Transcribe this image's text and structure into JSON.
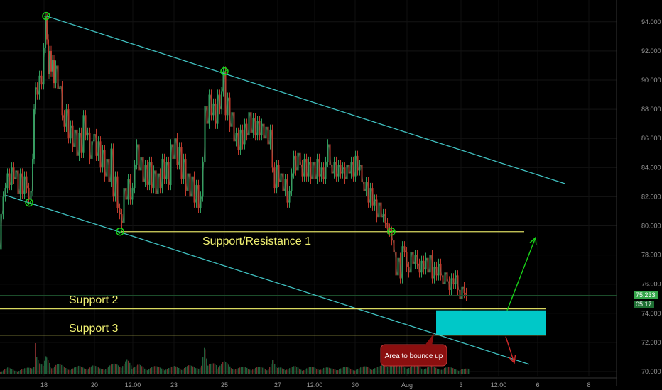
{
  "chart_data": {
    "type": "candlestick",
    "title": "",
    "y_ticks": [
      "94.000",
      "92.000",
      "90.000",
      "88.000",
      "86.000",
      "84.000",
      "82.000",
      "80.000",
      "78.000",
      "76.000",
      "74.000",
      "72.000",
      "70.000"
    ],
    "y_values": [
      94,
      92,
      90,
      88,
      86,
      84,
      82,
      80,
      78,
      76,
      74,
      72,
      70
    ],
    "ylim": [
      69.6,
      95.3
    ],
    "x_ticks": [
      "18",
      "20",
      "12:00",
      "23",
      "25",
      "27",
      "12:00",
      "30",
      "Aug",
      "3",
      "12:00",
      "6",
      "8"
    ],
    "current_price": "75.233",
    "countdown": "05:17",
    "grid": true,
    "price_path": [
      [
        0,
        78.4
      ],
      [
        3,
        80.8
      ],
      [
        6,
        82.0
      ],
      [
        9,
        82.6
      ],
      [
        12,
        83.6
      ],
      [
        15,
        82.8
      ],
      [
        18,
        84.0
      ],
      [
        21,
        83.2
      ],
      [
        24,
        83.8
      ],
      [
        27,
        82.2
      ],
      [
        30,
        83.6
      ],
      [
        33,
        82.2
      ],
      [
        36,
        83.4
      ],
      [
        39,
        82.6
      ],
      [
        42,
        81.8
      ],
      [
        45,
        82.4
      ],
      [
        47,
        84.6
      ],
      [
        49,
        88.0
      ],
      [
        51,
        89.5
      ],
      [
        54,
        89.0
      ],
      [
        57,
        90.3
      ],
      [
        60,
        89.7
      ],
      [
        63,
        92.2
      ],
      [
        65,
        94.3
      ],
      [
        67,
        92.8
      ],
      [
        69,
        90.4
      ],
      [
        71,
        92.0
      ],
      [
        73,
        90.6
      ],
      [
        75,
        91.4
      ],
      [
        77,
        89.8
      ],
      [
        80,
        91.0
      ],
      [
        83,
        89.4
      ],
      [
        86,
        89.6
      ],
      [
        89,
        87.6
      ],
      [
        92,
        86.8
      ],
      [
        95,
        88.0
      ],
      [
        98,
        86.0
      ],
      [
        101,
        86.9
      ],
      [
        104,
        85.4
      ],
      [
        107,
        86.6
      ],
      [
        110,
        84.8
      ],
      [
        113,
        86.4
      ],
      [
        116,
        85.0
      ],
      [
        119,
        87.6
      ],
      [
        122,
        86.2
      ],
      [
        125,
        86.4
      ],
      [
        128,
        84.6
      ],
      [
        131,
        85.8
      ],
      [
        134,
        86.3
      ],
      [
        137,
        84.8
      ],
      [
        140,
        85.8
      ],
      [
        143,
        84.0
      ],
      [
        146,
        85.2
      ],
      [
        149,
        83.4
      ],
      [
        152,
        84.6
      ],
      [
        155,
        83.0
      ],
      [
        158,
        85.3
      ],
      [
        161,
        82.0
      ],
      [
        164,
        83.4
      ],
      [
        167,
        81.2
      ],
      [
        170,
        80.8
      ],
      [
        173,
        80.2
      ],
      [
        176,
        82.6
      ],
      [
        179,
        81.8
      ],
      [
        182,
        83.2
      ],
      [
        185,
        81.8
      ],
      [
        188,
        82.6
      ],
      [
        191,
        84.2
      ],
      [
        194,
        85.6
      ],
      [
        197,
        83.8
      ],
      [
        200,
        84.7
      ],
      [
        203,
        83.0
      ],
      [
        206,
        84.2
      ],
      [
        209,
        82.8
      ],
      [
        212,
        84.4
      ],
      [
        215,
        82.6
      ],
      [
        218,
        83.8
      ],
      [
        221,
        82.2
      ],
      [
        224,
        83.6
      ],
      [
        227,
        82.6
      ],
      [
        230,
        84.6
      ],
      [
        233,
        83.2
      ],
      [
        236,
        84.4
      ],
      [
        239,
        82.8
      ],
      [
        242,
        85.6
      ],
      [
        245,
        84.6
      ],
      [
        248,
        86.0
      ],
      [
        251,
        84.2
      ],
      [
        254,
        85.4
      ],
      [
        257,
        83.2
      ],
      [
        260,
        84.6
      ],
      [
        263,
        82.4
      ],
      [
        266,
        83.6
      ],
      [
        269,
        82.0
      ],
      [
        272,
        83.4
      ],
      [
        275,
        81.6
      ],
      [
        278,
        82.8
      ],
      [
        281,
        81.2
      ],
      [
        284,
        82.0
      ],
      [
        287,
        84.4
      ],
      [
        290,
        88.2
      ],
      [
        293,
        87.0
      ],
      [
        296,
        89.0
      ],
      [
        299,
        87.6
      ],
      [
        302,
        88.4
      ],
      [
        305,
        87.0
      ],
      [
        308,
        89.0
      ],
      [
        311,
        88.0
      ],
      [
        313,
        89.2
      ],
      [
        316,
        90.6
      ],
      [
        319,
        87.6
      ],
      [
        322,
        88.8
      ],
      [
        325,
        86.8
      ],
      [
        328,
        87.8
      ],
      [
        331,
        85.8
      ],
      [
        334,
        86.4
      ],
      [
        337,
        85.2
      ],
      [
        340,
        86.6
      ],
      [
        343,
        85.6
      ],
      [
        346,
        87.0
      ],
      [
        349,
        86.2
      ],
      [
        352,
        87.8
      ],
      [
        355,
        86.4
      ],
      [
        358,
        87.4
      ],
      [
        361,
        86.2
      ],
      [
        364,
        87.2
      ],
      [
        367,
        86.2
      ],
      [
        370,
        87.0
      ],
      [
        373,
        86.0
      ],
      [
        376,
        86.8
      ],
      [
        379,
        85.6
      ],
      [
        382,
        86.6
      ],
      [
        385,
        84.0
      ],
      [
        388,
        82.6
      ],
      [
        391,
        84.2
      ],
      [
        394,
        83.0
      ],
      [
        397,
        83.6
      ],
      [
        400,
        82.4
      ],
      [
        403,
        83.2
      ],
      [
        406,
        81.6
      ],
      [
        409,
        82.4
      ],
      [
        412,
        83.6
      ],
      [
        415,
        84.8
      ],
      [
        418,
        83.8
      ],
      [
        421,
        85.0
      ],
      [
        424,
        84.2
      ],
      [
        427,
        83.4
      ],
      [
        430,
        84.6
      ],
      [
        433,
        83.4
      ],
      [
        436,
        84.4
      ],
      [
        439,
        83.2
      ],
      [
        442,
        84.4
      ],
      [
        445,
        83.2
      ],
      [
        448,
        84.6
      ],
      [
        451,
        83.4
      ],
      [
        454,
        84.0
      ],
      [
        457,
        83.2
      ],
      [
        460,
        84.4
      ],
      [
        463,
        85.6
      ],
      [
        466,
        84.2
      ],
      [
        469,
        83.6
      ],
      [
        472,
        84.4
      ],
      [
        475,
        83.4
      ],
      [
        478,
        84.2
      ],
      [
        481,
        83.6
      ],
      [
        484,
        84.0
      ],
      [
        487,
        83.2
      ],
      [
        490,
        84.2
      ],
      [
        493,
        83.6
      ],
      [
        496,
        84.4
      ],
      [
        499,
        83.4
      ],
      [
        502,
        84.8
      ],
      [
        505,
        83.8
      ],
      [
        508,
        84.2
      ],
      [
        511,
        83.0
      ],
      [
        514,
        82.4
      ],
      [
        517,
        83.0
      ],
      [
        520,
        81.6
      ],
      [
        523,
        82.6
      ],
      [
        526,
        81.4
      ],
      [
        529,
        81.8
      ],
      [
        532,
        80.6
      ],
      [
        535,
        81.6
      ],
      [
        538,
        80.6
      ],
      [
        541,
        80.8
      ],
      [
        544,
        80.2
      ],
      [
        547,
        79.8
      ],
      [
        550,
        79.6
      ],
      [
        553,
        79.0
      ],
      [
        556,
        78.2
      ],
      [
        559,
        76.6
      ],
      [
        562,
        77.8
      ],
      [
        565,
        76.4
      ],
      [
        568,
        78.6
      ],
      [
        571,
        78.2
      ],
      [
        574,
        77.2
      ],
      [
        577,
        76.8
      ],
      [
        580,
        78.2
      ],
      [
        583,
        77.4
      ],
      [
        586,
        78.0
      ],
      [
        589,
        77.4
      ],
      [
        592,
        76.8
      ],
      [
        595,
        77.6
      ],
      [
        598,
        77.0
      ],
      [
        601,
        77.8
      ],
      [
        604,
        76.8
      ],
      [
        607,
        78.0
      ],
      [
        610,
        76.4
      ],
      [
        613,
        77.2
      ],
      [
        616,
        76.6
      ],
      [
        619,
        77.4
      ],
      [
        622,
        76.6
      ],
      [
        625,
        76.0
      ],
      [
        628,
        76.8
      ],
      [
        631,
        76.2
      ],
      [
        634,
        75.6
      ],
      [
        637,
        76.4
      ],
      [
        640,
        76.0
      ],
      [
        643,
        76.6
      ],
      [
        646,
        75.6
      ],
      [
        649,
        75.0
      ],
      [
        652,
        75.8
      ],
      [
        655,
        75.4
      ],
      [
        658,
        75.2
      ]
    ],
    "volume_series": [
      [
        0,
        0.1
      ],
      [
        10,
        0.18
      ],
      [
        20,
        0.12
      ],
      [
        30,
        0.15
      ],
      [
        47,
        0.2
      ],
      [
        49,
        0.8
      ],
      [
        51,
        0.45
      ],
      [
        56,
        0.3
      ],
      [
        60,
        0.22
      ],
      [
        65,
        0.55
      ],
      [
        70,
        0.25
      ],
      [
        80,
        0.3
      ],
      [
        90,
        0.2
      ],
      [
        100,
        0.18
      ],
      [
        110,
        0.22
      ],
      [
        120,
        0.2
      ],
      [
        130,
        0.24
      ],
      [
        140,
        0.18
      ],
      [
        150,
        0.22
      ],
      [
        160,
        0.28
      ],
      [
        170,
        0.3
      ],
      [
        178,
        0.42
      ],
      [
        185,
        0.2
      ],
      [
        195,
        0.26
      ],
      [
        205,
        0.18
      ],
      [
        215,
        0.22
      ],
      [
        225,
        0.2
      ],
      [
        235,
        0.18
      ],
      [
        245,
        0.22
      ],
      [
        255,
        0.2
      ],
      [
        265,
        0.24
      ],
      [
        275,
        0.2
      ],
      [
        283,
        0.3
      ],
      [
        288,
        0.85
      ],
      [
        292,
        0.4
      ],
      [
        300,
        0.3
      ],
      [
        305,
        0.22
      ],
      [
        315,
        0.35
      ],
      [
        325,
        0.22
      ],
      [
        335,
        0.18
      ],
      [
        345,
        0.2
      ],
      [
        355,
        0.18
      ],
      [
        365,
        0.2
      ],
      [
        375,
        0.16
      ],
      [
        384,
        0.45
      ],
      [
        388,
        0.3
      ],
      [
        395,
        0.2
      ],
      [
        405,
        0.18
      ],
      [
        415,
        0.22
      ],
      [
        425,
        0.16
      ],
      [
        435,
        0.2
      ],
      [
        445,
        0.18
      ],
      [
        455,
        0.2
      ],
      [
        465,
        0.16
      ],
      [
        475,
        0.18
      ],
      [
        485,
        0.2
      ],
      [
        495,
        0.16
      ],
      [
        505,
        0.18
      ],
      [
        515,
        0.22
      ],
      [
        525,
        0.2
      ],
      [
        535,
        0.22
      ],
      [
        545,
        0.3
      ],
      [
        553,
        0.6
      ],
      [
        558,
        0.35
      ],
      [
        565,
        0.28
      ],
      [
        575,
        0.22
      ],
      [
        585,
        0.25
      ],
      [
        595,
        0.2
      ],
      [
        605,
        0.22
      ],
      [
        615,
        0.18
      ],
      [
        625,
        0.2
      ],
      [
        635,
        0.18
      ],
      [
        645,
        0.16
      ],
      [
        655,
        0.15
      ]
    ],
    "trendlines": [
      {
        "name": "channel-upper",
        "color": "#3fbfbf",
        "points": [
          [
            65,
            94.4
          ],
          [
            795,
            82.9
          ]
        ]
      },
      {
        "name": "channel-lower",
        "color": "#3fbfbf",
        "points": [
          [
            8,
            82.1
          ],
          [
            745,
            70.5
          ]
        ]
      },
      {
        "name": "support-resistance-1",
        "color": "#d8d860",
        "points": [
          [
            170,
            79.6
          ],
          [
            738,
            79.6
          ]
        ]
      },
      {
        "name": "support-2",
        "color": "#d8d860",
        "points": [
          [
            0,
            74.3
          ],
          [
            768,
            74.3
          ]
        ]
      },
      {
        "name": "support-3",
        "color": "#d8d860",
        "points": [
          [
            0,
            72.5
          ],
          [
            768,
            72.5
          ]
        ]
      }
    ],
    "pivot_markers": [
      [
        65,
        94.4
      ],
      [
        316,
        90.6
      ],
      [
        41,
        81.6
      ],
      [
        169,
        79.6
      ],
      [
        551,
        79.6
      ]
    ],
    "target_zone": {
      "x1": 614,
      "x2": 768,
      "y1": 74.2,
      "y2": 72.5,
      "color": "#00c8c8"
    },
    "arrows": [
      {
        "name": "bullish-arrow",
        "color": "#19d019",
        "from": [
          714,
          74.2
        ],
        "to": [
          754,
          79.2
        ]
      },
      {
        "name": "bearish-arrow",
        "color": "#d02a2a",
        "from": [
          712,
          72.4
        ],
        "to": [
          724,
          70.6
        ]
      }
    ],
    "annotations": {
      "sr1": "Support/Resistance 1",
      "s2": "Support 2",
      "s3": "Support 3",
      "bounce": "Area to bounce up"
    },
    "colors": {
      "background": "#000000",
      "up": "#2e9e5e",
      "down": "#c0392b",
      "sr": "#d8d860",
      "channel": "#3fbfbf",
      "text": "#f2f272"
    }
  }
}
